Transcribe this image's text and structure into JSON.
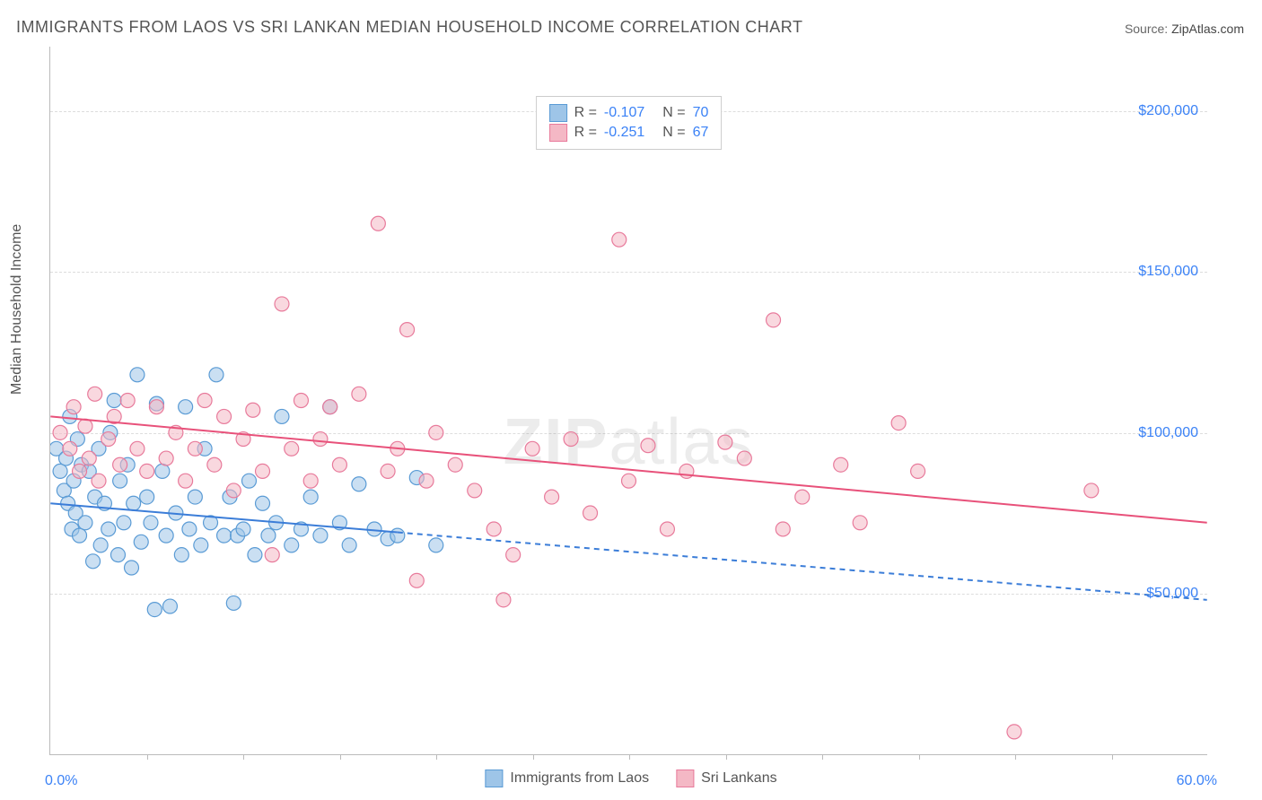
{
  "title": "IMMIGRANTS FROM LAOS VS SRI LANKAN MEDIAN HOUSEHOLD INCOME CORRELATION CHART",
  "source_label": "Source: ",
  "source_value": "ZipAtlas.com",
  "y_axis_label": "Median Household Income",
  "x_min_label": "0.0%",
  "x_max_label": "60.0%",
  "watermark_a": "ZIP",
  "watermark_b": "atlas",
  "chart": {
    "type": "scatter",
    "xlim": [
      0,
      60
    ],
    "ylim": [
      0,
      220000
    ],
    "y_ticks": [
      50000,
      100000,
      150000,
      200000
    ],
    "y_tick_labels": [
      "$50,000",
      "$100,000",
      "$150,000",
      "$200,000"
    ],
    "x_ticks": [
      5,
      10,
      15,
      20,
      25,
      30,
      35,
      40,
      45,
      50,
      55
    ],
    "grid_color": "#dddddd",
    "axis_color": "#bbbbbb",
    "background_color": "#ffffff",
    "marker_radius": 8,
    "marker_opacity": 0.55,
    "series": [
      {
        "name": "Immigrants from Laos",
        "fill_color": "#9ec5e8",
        "stroke_color": "#5a9bd5",
        "R": "-0.107",
        "N": "70",
        "trend": {
          "y_start": 78000,
          "y_end": 48000,
          "solid_until_x": 18,
          "line_color": "#3b7dd8",
          "line_width": 2
        },
        "points": [
          [
            0.3,
            95000
          ],
          [
            0.5,
            88000
          ],
          [
            0.7,
            82000
          ],
          [
            0.8,
            92000
          ],
          [
            0.9,
            78000
          ],
          [
            1.0,
            105000
          ],
          [
            1.1,
            70000
          ],
          [
            1.2,
            85000
          ],
          [
            1.3,
            75000
          ],
          [
            1.4,
            98000
          ],
          [
            1.5,
            68000
          ],
          [
            1.6,
            90000
          ],
          [
            1.8,
            72000
          ],
          [
            2.0,
            88000
          ],
          [
            2.2,
            60000
          ],
          [
            2.3,
            80000
          ],
          [
            2.5,
            95000
          ],
          [
            2.6,
            65000
          ],
          [
            2.8,
            78000
          ],
          [
            3.0,
            70000
          ],
          [
            3.1,
            100000
          ],
          [
            3.3,
            110000
          ],
          [
            3.5,
            62000
          ],
          [
            3.6,
            85000
          ],
          [
            3.8,
            72000
          ],
          [
            4.0,
            90000
          ],
          [
            4.2,
            58000
          ],
          [
            4.3,
            78000
          ],
          [
            4.5,
            118000
          ],
          [
            4.7,
            66000
          ],
          [
            5.0,
            80000
          ],
          [
            5.2,
            72000
          ],
          [
            5.4,
            45000
          ],
          [
            5.5,
            109000
          ],
          [
            5.8,
            88000
          ],
          [
            6.0,
            68000
          ],
          [
            6.2,
            46000
          ],
          [
            6.5,
            75000
          ],
          [
            6.8,
            62000
          ],
          [
            7.0,
            108000
          ],
          [
            7.2,
            70000
          ],
          [
            7.5,
            80000
          ],
          [
            7.8,
            65000
          ],
          [
            8.0,
            95000
          ],
          [
            8.3,
            72000
          ],
          [
            8.6,
            118000
          ],
          [
            9.0,
            68000
          ],
          [
            9.3,
            80000
          ],
          [
            9.5,
            47000
          ],
          [
            9.7,
            68000
          ],
          [
            10.0,
            70000
          ],
          [
            10.3,
            85000
          ],
          [
            10.6,
            62000
          ],
          [
            11.0,
            78000
          ],
          [
            11.3,
            68000
          ],
          [
            11.7,
            72000
          ],
          [
            12.0,
            105000
          ],
          [
            12.5,
            65000
          ],
          [
            13.0,
            70000
          ],
          [
            13.5,
            80000
          ],
          [
            14.0,
            68000
          ],
          [
            14.5,
            108000
          ],
          [
            15.0,
            72000
          ],
          [
            15.5,
            65000
          ],
          [
            16.0,
            84000
          ],
          [
            16.8,
            70000
          ],
          [
            17.5,
            67000
          ],
          [
            18.0,
            68000
          ],
          [
            19.0,
            86000
          ],
          [
            20.0,
            65000
          ]
        ]
      },
      {
        "name": "Sri Lankans",
        "fill_color": "#f4b8c5",
        "stroke_color": "#e87a9b",
        "R": "-0.251",
        "N": "67",
        "trend": {
          "y_start": 105000,
          "y_end": 72000,
          "solid_until_x": 60,
          "line_color": "#e8517a",
          "line_width": 2
        },
        "points": [
          [
            0.5,
            100000
          ],
          [
            1.0,
            95000
          ],
          [
            1.2,
            108000
          ],
          [
            1.5,
            88000
          ],
          [
            1.8,
            102000
          ],
          [
            2.0,
            92000
          ],
          [
            2.3,
            112000
          ],
          [
            2.5,
            85000
          ],
          [
            3.0,
            98000
          ],
          [
            3.3,
            105000
          ],
          [
            3.6,
            90000
          ],
          [
            4.0,
            110000
          ],
          [
            4.5,
            95000
          ],
          [
            5.0,
            88000
          ],
          [
            5.5,
            108000
          ],
          [
            6.0,
            92000
          ],
          [
            6.5,
            100000
          ],
          [
            7.0,
            85000
          ],
          [
            7.5,
            95000
          ],
          [
            8.0,
            110000
          ],
          [
            8.5,
            90000
          ],
          [
            9.0,
            105000
          ],
          [
            9.5,
            82000
          ],
          [
            10.0,
            98000
          ],
          [
            10.5,
            107000
          ],
          [
            11.0,
            88000
          ],
          [
            11.5,
            62000
          ],
          [
            12.0,
            140000
          ],
          [
            12.5,
            95000
          ],
          [
            13.0,
            110000
          ],
          [
            13.5,
            85000
          ],
          [
            14.0,
            98000
          ],
          [
            14.5,
            108000
          ],
          [
            15.0,
            90000
          ],
          [
            16.0,
            112000
          ],
          [
            17.0,
            165000
          ],
          [
            17.5,
            88000
          ],
          [
            18.0,
            95000
          ],
          [
            18.5,
            132000
          ],
          [
            19.0,
            54000
          ],
          [
            19.5,
            85000
          ],
          [
            20.0,
            100000
          ],
          [
            21.0,
            90000
          ],
          [
            22.0,
            82000
          ],
          [
            23.0,
            70000
          ],
          [
            23.5,
            48000
          ],
          [
            24.0,
            62000
          ],
          [
            25.0,
            95000
          ],
          [
            26.0,
            80000
          ],
          [
            27.0,
            98000
          ],
          [
            28.0,
            75000
          ],
          [
            29.5,
            160000
          ],
          [
            30.0,
            85000
          ],
          [
            31.0,
            96000
          ],
          [
            32.0,
            70000
          ],
          [
            33.0,
            88000
          ],
          [
            35.0,
            97000
          ],
          [
            36.0,
            92000
          ],
          [
            37.5,
            135000
          ],
          [
            38.0,
            70000
          ],
          [
            39.0,
            80000
          ],
          [
            41.0,
            90000
          ],
          [
            42.0,
            72000
          ],
          [
            44.0,
            103000
          ],
          [
            45.0,
            88000
          ],
          [
            50.0,
            7000
          ],
          [
            54.0,
            82000
          ]
        ]
      }
    ]
  },
  "legend": {
    "series1_label": "Immigrants from Laos",
    "series2_label": "Sri Lankans"
  }
}
